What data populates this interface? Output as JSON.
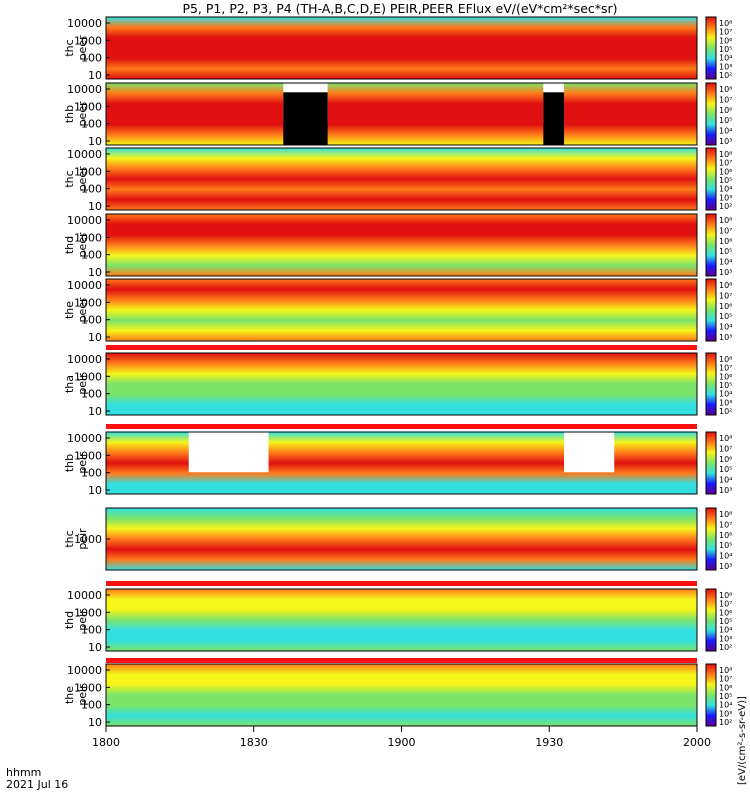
{
  "title": "P5, P1, P2, P3, P4 (TH-A,B,C,D,E) PEIR,PEER EFlux eV/(eV*cm²*sec*sr)",
  "colorbar_unit_label": "[eV/(cm²-s-sr-eV)]",
  "time_axis": {
    "label_line1": "hhmm",
    "label_line2": "2021 Jul 16",
    "ticks": [
      "1800",
      "1830",
      "1900",
      "1930",
      "2000"
    ],
    "range": [
      "18:00",
      "20:00"
    ]
  },
  "colors": {
    "low": "#1a1aff",
    "cyan": "#33e0e0",
    "green": "#7be36a",
    "yellow": "#f5f51a",
    "orange": "#ff7a1a",
    "red": "#e01010",
    "fill": "#000000",
    "flag_red": "#ff1010",
    "flag_yellow": "#ffff00"
  },
  "chart_data": [
    {
      "type": "heatmap",
      "panel": "thc peer",
      "ylabel": [
        "thc",
        "peer"
      ],
      "y_ticks": [
        "10000",
        "1000",
        "100",
        "10"
      ],
      "colorbar_ticks": [
        "10⁸",
        "10⁷",
        "10⁶",
        "10⁵",
        "10⁴",
        "10³",
        "10²"
      ],
      "scale": "log",
      "profile": [
        "cyan",
        "orange",
        "red",
        "red",
        "red",
        "orange",
        "red"
      ]
    },
    {
      "type": "heatmap",
      "panel": "thb peer",
      "ylabel": [
        "thb",
        "peer"
      ],
      "y_ticks": [
        "10000",
        "1000",
        "100",
        "10"
      ],
      "colorbar_ticks": [
        "10⁸",
        "10⁷",
        "10⁶",
        "10⁵",
        "10⁴",
        "10³"
      ],
      "scale": "log",
      "profile": [
        "green",
        "orange",
        "red",
        "red",
        "red",
        "orange",
        "yellow"
      ],
      "gaps": [
        [
          18.6,
          18.75
        ],
        [
          19.48,
          19.55
        ]
      ],
      "fill_blocks": [
        [
          18.6,
          18.75
        ],
        [
          19.48,
          19.55
        ]
      ]
    },
    {
      "type": "heatmap",
      "panel": "thc peer",
      "ylabel": [
        "thc",
        "peer"
      ],
      "y_ticks": [
        "10000",
        "1000",
        "100",
        "10"
      ],
      "colorbar_ticks": [
        "10⁸",
        "10⁷",
        "10⁶",
        "10⁵",
        "10⁴",
        "10³",
        "10²"
      ],
      "scale": "log",
      "profile": [
        "cyan",
        "yellow",
        "orange",
        "red",
        "orange",
        "red",
        "orange"
      ]
    },
    {
      "type": "heatmap",
      "panel": "thd peer",
      "ylabel": [
        "thd",
        "peer"
      ],
      "y_ticks": [
        "10000",
        "1000",
        "100",
        "10"
      ],
      "colorbar_ticks": [
        "10⁸",
        "10⁷",
        "10⁶",
        "10⁵",
        "10⁴",
        "10³"
      ],
      "scale": "log",
      "profile": [
        "orange",
        "red",
        "red",
        "orange",
        "yellow",
        "green",
        "orange"
      ]
    },
    {
      "type": "heatmap",
      "panel": "the peer",
      "ylabel": [
        "the",
        "peer"
      ],
      "y_ticks": [
        "10000",
        "1000",
        "100",
        "10"
      ],
      "colorbar_ticks": [
        "10⁸",
        "10⁷",
        "10⁶",
        "10⁵",
        "10⁴",
        "10³"
      ],
      "scale": "log",
      "profile": [
        "orange",
        "red",
        "orange",
        "yellow",
        "green",
        "yellow",
        "orange"
      ]
    },
    {
      "type": "heatmap",
      "panel": "tha peir",
      "ylabel": [
        "tha",
        "peir"
      ],
      "y_ticks": [
        "10000",
        "1000",
        "100",
        "10"
      ],
      "colorbar_ticks": [
        "10⁸",
        "10⁷",
        "10⁶",
        "10⁵",
        "10⁴",
        "10³",
        "10²"
      ],
      "scale": "log",
      "profile": [
        "red",
        "orange",
        "yellow",
        "green",
        "green",
        "cyan",
        "cyan"
      ]
    },
    {
      "type": "heatmap",
      "panel": "thb peir",
      "ylabel": [
        "thb",
        "peir"
      ],
      "y_ticks": [
        "10000",
        "1000",
        "100",
        "10"
      ],
      "colorbar_ticks": [
        "10⁸",
        "10⁷",
        "10⁶",
        "10⁵",
        "10⁴",
        "10³"
      ],
      "scale": "log",
      "profile": [
        "cyan",
        "yellow",
        "orange",
        "red",
        "orange",
        "cyan",
        "cyan"
      ],
      "gaps": [
        [
          18.28,
          18.55
        ],
        [
          19.55,
          19.72
        ]
      ]
    },
    {
      "type": "heatmap",
      "panel": "thc peir",
      "ylabel": [
        "thc",
        "peir"
      ],
      "y_ticks": [
        "1000"
      ],
      "colorbar_ticks": [
        "10⁸",
        "10⁷",
        "10⁶",
        "10⁵",
        "10⁴",
        "10³"
      ],
      "scale": "log",
      "profile": [
        "cyan",
        "green",
        "yellow",
        "orange",
        "red",
        "orange",
        "cyan"
      ]
    },
    {
      "type": "heatmap",
      "panel": "thd peir",
      "ylabel": [
        "thd",
        "peir"
      ],
      "y_ticks": [
        "10000",
        "1000",
        "100",
        "10"
      ],
      "colorbar_ticks": [
        "10⁸",
        "10⁷",
        "10⁶",
        "10⁵",
        "10⁴",
        "10³",
        "10²"
      ],
      "scale": "log",
      "profile": [
        "orange",
        "yellow",
        "yellow",
        "green",
        "cyan",
        "cyan",
        "green"
      ]
    },
    {
      "type": "heatmap",
      "panel": "the peir",
      "ylabel": [
        "the",
        "peir"
      ],
      "y_ticks": [
        "10000",
        "1000",
        "100",
        "10"
      ],
      "colorbar_ticks": [
        "10⁸",
        "10⁷",
        "10⁶",
        "10⁵",
        "10⁴",
        "10³",
        "10²"
      ],
      "scale": "log",
      "profile": [
        "orange",
        "yellow",
        "yellow",
        "green",
        "green",
        "cyan",
        "green"
      ]
    }
  ]
}
